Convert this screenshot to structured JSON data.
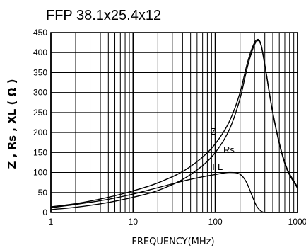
{
  "chart_data": {
    "type": "line",
    "title": "FFP 38.1x25.4x12",
    "xlabel": "FREQUENCY(MHz)",
    "ylabel": "Z , Rs , XL ( Ω )",
    "x_scale": "log",
    "xlim": [
      1,
      1000
    ],
    "ylim": [
      0,
      450
    ],
    "x_ticks": [
      1,
      10,
      100,
      1000
    ],
    "x_tick_labels": [
      "1",
      "10",
      "100",
      "1000"
    ],
    "y_ticks": [
      0,
      50,
      100,
      150,
      200,
      250,
      300,
      350,
      400,
      450
    ],
    "y_tick_labels": [
      "0",
      "50",
      "100",
      "150",
      "200",
      "250",
      "300",
      "350",
      "400",
      "450"
    ],
    "grid": true,
    "series": [
      {
        "name": "Z",
        "x": [
          1,
          2,
          5,
          10,
          20,
          50,
          100,
          150,
          200,
          250,
          300,
          330,
          360,
          400,
          500,
          700,
          1000
        ],
        "y": [
          14,
          22,
          38,
          54,
          74,
          115,
          172,
          230,
          300,
          380,
          425,
          433,
          420,
          370,
          250,
          125,
          63
        ]
      },
      {
        "name": "Rs",
        "x": [
          1,
          2,
          5,
          10,
          20,
          50,
          100,
          150,
          200,
          250,
          300,
          330,
          360,
          400,
          500,
          700,
          1000
        ],
        "y": [
          7,
          13,
          25,
          38,
          55,
          95,
          150,
          210,
          285,
          370,
          420,
          430,
          418,
          368,
          248,
          122,
          60
        ]
      },
      {
        "name": "L",
        "x": [
          1,
          2,
          5,
          10,
          20,
          50,
          100,
          150,
          180,
          210,
          240,
          280,
          320,
          400,
          600,
          1000
        ],
        "y": [
          12,
          20,
          33,
          46,
          62,
          83,
          95,
          100,
          99,
          92,
          75,
          42,
          15,
          0,
          0,
          0
        ]
      }
    ]
  }
}
